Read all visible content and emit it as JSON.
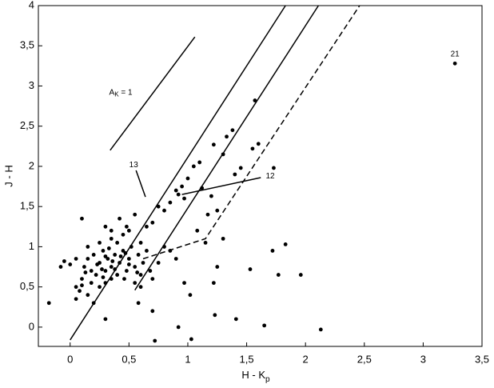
{
  "chart_data": {
    "type": "scatter",
    "xlabel": {
      "main": "H - K",
      "sub": "p"
    },
    "ylabel": "J - H",
    "xlim": [
      -0.27,
      3.5
    ],
    "ylim": [
      -0.24,
      4
    ],
    "xticks": [
      0,
      {
        "value": 0.5,
        "label": "0,5"
      },
      1,
      {
        "value": 1.5,
        "label": "1,5"
      },
      2,
      {
        "value": 2.5,
        "label": "2,5"
      },
      3,
      {
        "value": 3.5,
        "label": "3,5"
      }
    ],
    "yticks": [
      0,
      {
        "value": 0.5,
        "label": "0,5"
      },
      1,
      {
        "value": 1.5,
        "label": "1,5"
      },
      2,
      {
        "value": 2.5,
        "label": "2,5"
      },
      3,
      {
        "value": 3.5,
        "label": "3,5"
      },
      4
    ],
    "color": "#000000",
    "x": [
      -0.18,
      0.72,
      0.92,
      1.03,
      1.23,
      1.41,
      1.65,
      2.13,
      1.83,
      1.72,
      1.77,
      1.96,
      1.53,
      1.02,
      0.97,
      1.25,
      1.22,
      0.7,
      0.58,
      0.3,
      3.27,
      1.57,
      1.73,
      1.55,
      1.6,
      1.38,
      1.33,
      1.22,
      1.3,
      1.45,
      1.1,
      1.05,
      1.0,
      0.95,
      0.9,
      0.92,
      0.97,
      1.12,
      1.2,
      1.25,
      1.17,
      1.4,
      0.85,
      0.8,
      0.75,
      0.7,
      0.65,
      0.55,
      0.42,
      0.3,
      0.1,
      0.5,
      0.45,
      0.6,
      0.8,
      0.85,
      0.9,
      0.75,
      1.08,
      1.15,
      1.3,
      0.05,
      0.08,
      0.1,
      0.12,
      0.15,
      0.18,
      0.2,
      0.22,
      0.25,
      0.28,
      0.3,
      0.32,
      0.35,
      0.38,
      0.4,
      0.42,
      0.45,
      0.48,
      0.5,
      0.52,
      0.55,
      0.58,
      0.6,
      0.62,
      0.65,
      0.68,
      0.3,
      0.35,
      0.25,
      0.15,
      0.2,
      0.4,
      0.35,
      0.25,
      0.15,
      0.05,
      0.0,
      -0.08,
      -0.05,
      0.18,
      0.28,
      0.38,
      0.46,
      0.55,
      0.6,
      0.7,
      0.43,
      0.33,
      0.23,
      0.13,
      0.5,
      0.36,
      0.27,
      0.57,
      0.47,
      0.3,
      0.1,
      0.05,
      0.48,
      0.35
    ],
    "y": [
      0.3,
      -0.17,
      0.0,
      -0.15,
      0.15,
      0.1,
      0.02,
      -0.03,
      1.03,
      0.95,
      0.65,
      0.65,
      0.72,
      0.4,
      0.55,
      0.75,
      0.55,
      0.2,
      0.3,
      0.1,
      3.28,
      2.82,
      1.98,
      2.22,
      2.28,
      2.45,
      2.37,
      2.27,
      2.15,
      1.98,
      2.05,
      2.0,
      1.85,
      1.75,
      1.7,
      1.65,
      1.6,
      1.73,
      1.63,
      1.45,
      1.4,
      1.9,
      1.55,
      1.45,
      1.5,
      1.3,
      1.25,
      1.4,
      1.35,
      1.25,
      1.35,
      1.2,
      1.15,
      1.05,
      1.0,
      0.95,
      0.85,
      0.8,
      1.2,
      1.05,
      1.1,
      0.5,
      0.45,
      0.6,
      0.75,
      0.85,
      0.7,
      0.9,
      0.65,
      0.8,
      0.95,
      0.7,
      0.85,
      0.75,
      0.9,
      0.65,
      0.8,
      0.95,
      0.7,
      0.85,
      1.0,
      0.75,
      0.9,
      0.65,
      0.8,
      0.95,
      0.7,
      0.55,
      0.6,
      0.5,
      0.4,
      0.3,
      1.05,
      1.1,
      1.05,
      1.0,
      0.85,
      0.78,
      0.75,
      0.82,
      0.55,
      0.62,
      0.72,
      0.6,
      0.55,
      0.5,
      0.6,
      0.88,
      0.98,
      0.78,
      0.68,
      0.78,
      0.82,
      0.72,
      0.68,
      0.92,
      0.88,
      0.52,
      0.35,
      1.25,
      1.2
    ],
    "lines": [
      {
        "x": [
          0.34,
          1.06
        ],
        "y": [
          2.2,
          3.61
        ],
        "dash": false
      },
      {
        "x": [
          0,
          1.83
        ],
        "y": [
          -0.16,
          4
        ],
        "dash": false
      },
      {
        "x": [
          0.55,
          2.11
        ],
        "y": [
          0.46,
          4
        ],
        "dash": false
      },
      {
        "x": [
          0.62,
          1.15,
          2.46
        ],
        "y": [
          0.85,
          1.1,
          4
        ],
        "dash": true
      },
      {
        "x": [
          0.95,
          1.62
        ],
        "y": [
          1.65,
          1.86
        ],
        "dash": false
      },
      {
        "x": [
          0.56,
          0.64
        ],
        "y": [
          1.95,
          1.62
        ],
        "dash": false
      }
    ],
    "annotations": [
      {
        "text": "A",
        "sub": "K",
        "rest": " = 1",
        "x": 0.43,
        "y": 2.92
      },
      {
        "text": "12",
        "x": 1.7,
        "y": 1.88
      },
      {
        "text": "13",
        "x": 0.54,
        "y": 2.02
      },
      {
        "text": "21",
        "x": 3.27,
        "y": 3.4
      }
    ]
  }
}
